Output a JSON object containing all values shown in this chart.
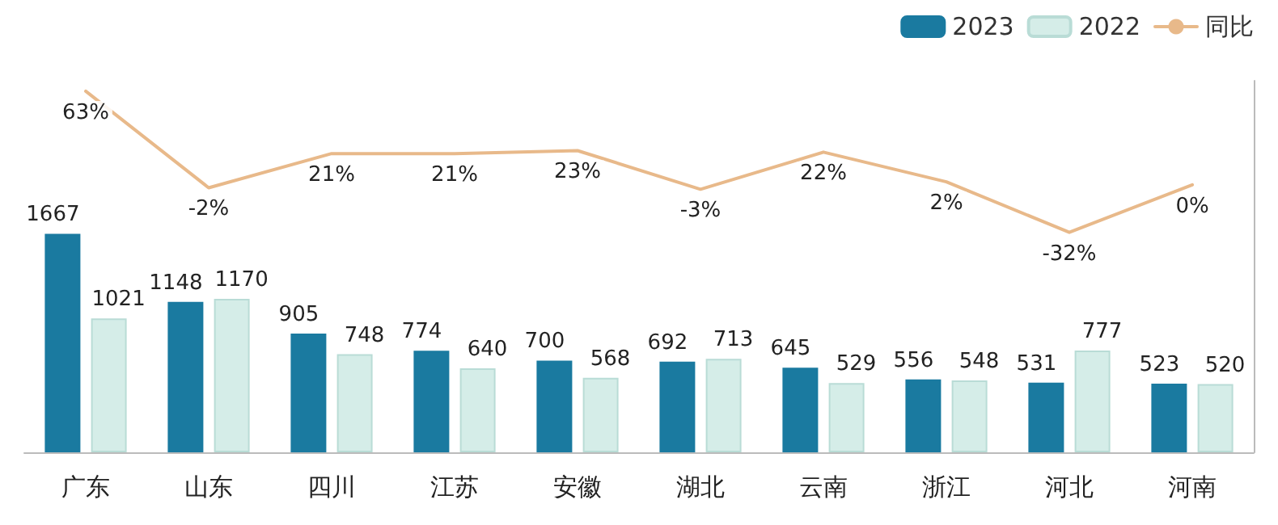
{
  "chart_data": {
    "type": "bar",
    "categories": [
      "广东",
      "山东",
      "四川",
      "江苏",
      "安徽",
      "湖北",
      "云南",
      "浙江",
      "河北",
      "河南"
    ],
    "series": [
      {
        "name": "2023",
        "color": "#1a7aa0",
        "values": [
          1667,
          1148,
          905,
          774,
          700,
          692,
          645,
          556,
          531,
          523
        ]
      },
      {
        "name": "2022",
        "color": "#d5ede8",
        "values": [
          1021,
          1170,
          748,
          640,
          568,
          713,
          529,
          548,
          777,
          520
        ]
      },
      {
        "name": "同比",
        "type": "line",
        "axis": "y2",
        "color": "#e8b98a",
        "values": [
          63,
          -2,
          21,
          21,
          23,
          -3,
          22,
          2,
          -32,
          0
        ],
        "value_labels": [
          "63%",
          "-2%",
          "21%",
          "21%",
          "23%",
          "-3%",
          "22%",
          "2%",
          "-32%",
          "0%"
        ]
      }
    ],
    "y2lim": [
      -180,
      70
    ],
    "tick_labels": "x",
    "data_labels": true,
    "legend": "top right",
    "marker": "none",
    "line_style": "solid"
  }
}
